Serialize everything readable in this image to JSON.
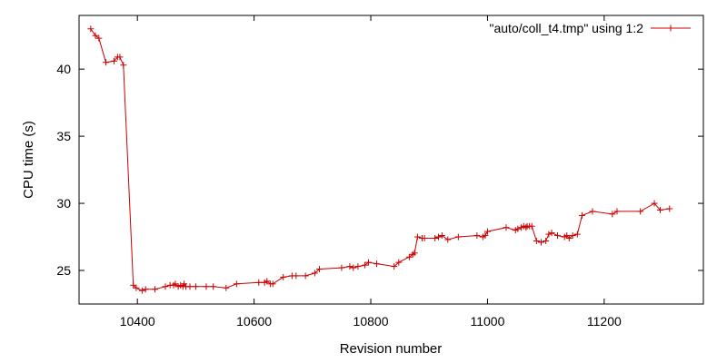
{
  "chart_data": {
    "type": "line",
    "title": "",
    "xlabel": "Revision number",
    "ylabel": "CPU time (s)",
    "xlim": [
      10300,
      11370
    ],
    "ylim": [
      22.5,
      44
    ],
    "xticks": [
      10400,
      10600,
      10800,
      11000,
      11200
    ],
    "yticks": [
      25,
      30,
      35,
      40
    ],
    "grid": false,
    "legend_position": "top-right",
    "series_color": "#cc0000",
    "series": [
      {
        "name": "\"auto/coll_t4.tmp\" using 1:2",
        "x": [
          10320,
          10328,
          10334,
          10346,
          10360,
          10366,
          10370,
          10376,
          10393,
          10398,
          10408,
          10414,
          10430,
          10448,
          10456,
          10462,
          10465,
          10470,
          10474,
          10478,
          10480,
          10483,
          10490,
          10500,
          10518,
          10530,
          10552,
          10570,
          10608,
          10618,
          10622,
          10628,
          10632,
          10650,
          10665,
          10672,
          10688,
          10704,
          10712,
          10750,
          10764,
          10770,
          10778,
          10790,
          10796,
          10810,
          10840,
          10848,
          10866,
          10872,
          10875,
          10880,
          10888,
          10892,
          10910,
          10916,
          10922,
          10932,
          10950,
          10982,
          10992,
          10996,
          11000,
          11032,
          11048,
          11052,
          11058,
          11062,
          11066,
          11068,
          11072,
          11076,
          11084,
          11092,
          11100,
          11105,
          11110,
          11120,
          11132,
          11136,
          11140,
          11146,
          11154,
          11162,
          11180,
          11214,
          11222,
          11262,
          11286,
          11296,
          11312
        ],
        "values": [
          43.0,
          42.5,
          42.3,
          40.5,
          40.6,
          40.9,
          40.9,
          40.3,
          23.9,
          23.7,
          23.5,
          23.6,
          23.6,
          23.8,
          23.9,
          23.9,
          24.0,
          23.8,
          23.9,
          23.8,
          24.0,
          23.8,
          23.8,
          23.8,
          23.8,
          23.8,
          23.7,
          24.0,
          24.1,
          24.1,
          24.2,
          24.0,
          24.0,
          24.5,
          24.6,
          24.6,
          24.6,
          24.8,
          25.1,
          25.2,
          25.3,
          25.2,
          25.3,
          25.4,
          25.6,
          25.5,
          25.3,
          25.6,
          26.0,
          26.2,
          26.3,
          27.5,
          27.4,
          27.4,
          27.4,
          27.5,
          27.6,
          27.3,
          27.5,
          27.6,
          27.5,
          27.6,
          27.9,
          28.2,
          28.0,
          28.1,
          28.2,
          28.3,
          28.2,
          28.3,
          28.3,
          28.3,
          27.2,
          27.1,
          27.2,
          27.7,
          27.8,
          27.6,
          27.5,
          27.6,
          27.4,
          27.6,
          27.7,
          29.1,
          29.4,
          29.2,
          29.4,
          29.4,
          30.0,
          29.5,
          29.6
        ]
      }
    ]
  }
}
